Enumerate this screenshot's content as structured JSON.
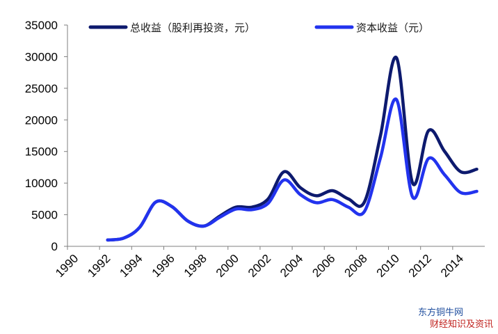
{
  "chart_data": {
    "type": "line",
    "title": "",
    "xlabel": "",
    "ylabel": "",
    "xlim": [
      1990,
      2016
    ],
    "ylim": [
      0,
      35000
    ],
    "x_ticks": [
      "1990",
      "1992",
      "1994",
      "1996",
      "1998",
      "2000",
      "2002",
      "2004",
      "2006",
      "2008",
      "2010",
      "2012",
      "2014"
    ],
    "y_ticks": [
      "0",
      "5000",
      "10000",
      "15000",
      "20000",
      "25000",
      "30000",
      "35000"
    ],
    "grid": false,
    "legend_position": "top",
    "series": [
      {
        "name": "总收益（股利再投资，元）",
        "color": "#0d1a6e",
        "x": [
          1992.5,
          1993.5,
          1994.5,
          1995.5,
          1996.5,
          1997.5,
          1998.5,
          1999.5,
          2000.5,
          2001.5,
          2002.5,
          2003.5,
          2004.5,
          2005.5,
          2006.5,
          2007.5,
          2008.5,
          2009.5,
          2010.5,
          2011.5,
          2012.5,
          2013.5,
          2014.5,
          2015.5
        ],
        "values": [
          1000,
          1300,
          3000,
          7000,
          6300,
          4000,
          3200,
          4800,
          6200,
          6200,
          7500,
          11800,
          9300,
          8000,
          8800,
          7500,
          7000,
          17500,
          29800,
          10000,
          18300,
          15000,
          11800,
          12200
        ]
      },
      {
        "name": "资本收益（元）",
        "color": "#2233ee",
        "x": [
          1992.5,
          1993.5,
          1994.5,
          1995.5,
          1996.5,
          1997.5,
          1998.5,
          1999.5,
          2000.5,
          2001.5,
          2002.5,
          2003.5,
          2004.5,
          2005.5,
          2006.5,
          2007.5,
          2008.5,
          2009.5,
          2010.5,
          2011.5,
          2012.5,
          2013.5,
          2014.5,
          2015.5
        ],
        "values": [
          1000,
          1300,
          3000,
          7000,
          6300,
          4000,
          3200,
          4600,
          5900,
          5800,
          6800,
          10500,
          8200,
          6900,
          7400,
          6200,
          5500,
          14000,
          23200,
          7800,
          13900,
          11300,
          8500,
          8700
        ]
      }
    ]
  },
  "legend": {
    "total_label": "总收益（股利再投资，元）",
    "capital_label": "资本收益（元）"
  },
  "watermark": {
    "line1": "东方铜牛网",
    "line2": "财经知识及资讯"
  }
}
